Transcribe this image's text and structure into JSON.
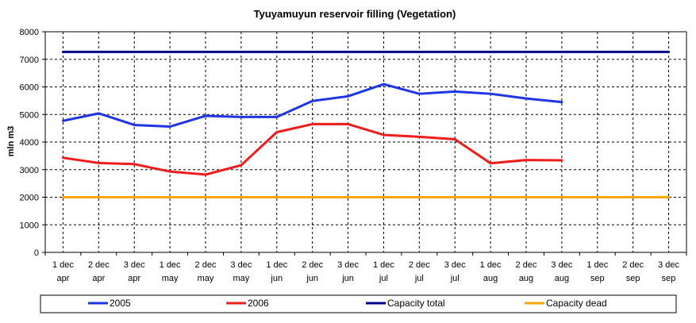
{
  "chart_data": {
    "type": "line",
    "title": "Tyuyamuyun reservoir filling (Vegetation)",
    "xlabel": "",
    "ylabel": "mln m3",
    "ylim": [
      0,
      8000
    ],
    "yticks": [
      0,
      1000,
      2000,
      3000,
      4000,
      5000,
      6000,
      7000,
      8000
    ],
    "grid": true,
    "legend_position": "bottom",
    "categories": [
      [
        "1 dec",
        "apr"
      ],
      [
        "2 dec",
        "apr"
      ],
      [
        "3 dec",
        "apr"
      ],
      [
        "1 dec",
        "may"
      ],
      [
        "2 dec",
        "may"
      ],
      [
        "3 dec",
        "may"
      ],
      [
        "1 dec",
        "jun"
      ],
      [
        "2 dec",
        "jun"
      ],
      [
        "3 dec",
        "jun"
      ],
      [
        "1 dec",
        "jul"
      ],
      [
        "2 dec",
        "jul"
      ],
      [
        "3 dec",
        "jul"
      ],
      [
        "1 dec",
        "aug"
      ],
      [
        "2 dec",
        "aug"
      ],
      [
        "3 dec",
        "aug"
      ],
      [
        "1 dec",
        "sep"
      ],
      [
        "2 dec",
        "sep"
      ],
      [
        "3 dec",
        "sep"
      ]
    ],
    "series": [
      {
        "name": "2005",
        "color": "#1e35e6",
        "values": [
          4770,
          5040,
          4620,
          4560,
          4950,
          4910,
          4910,
          5490,
          5660,
          6100,
          5750,
          5830,
          5750,
          5580,
          5450,
          null,
          null,
          null
        ]
      },
      {
        "name": "2006",
        "color": "#ee1c1c",
        "values": [
          3430,
          3240,
          3200,
          2930,
          2820,
          3160,
          4360,
          4650,
          4650,
          4260,
          4190,
          4100,
          3230,
          3350,
          3340,
          null,
          null,
          null
        ]
      },
      {
        "name": "Capacity total",
        "color": "#00008b",
        "values": [
          7270,
          7270,
          7270,
          7270,
          7270,
          7270,
          7270,
          7270,
          7270,
          7270,
          7270,
          7270,
          7270,
          7270,
          7270,
          7270,
          7270,
          7270
        ]
      },
      {
        "name": "Capacity dead",
        "color": "#ffa500",
        "values": [
          2000,
          2000,
          2000,
          2000,
          2000,
          2000,
          2000,
          2000,
          2000,
          2000,
          2000,
          2000,
          2000,
          2000,
          2000,
          2000,
          2000,
          2000
        ]
      }
    ]
  }
}
